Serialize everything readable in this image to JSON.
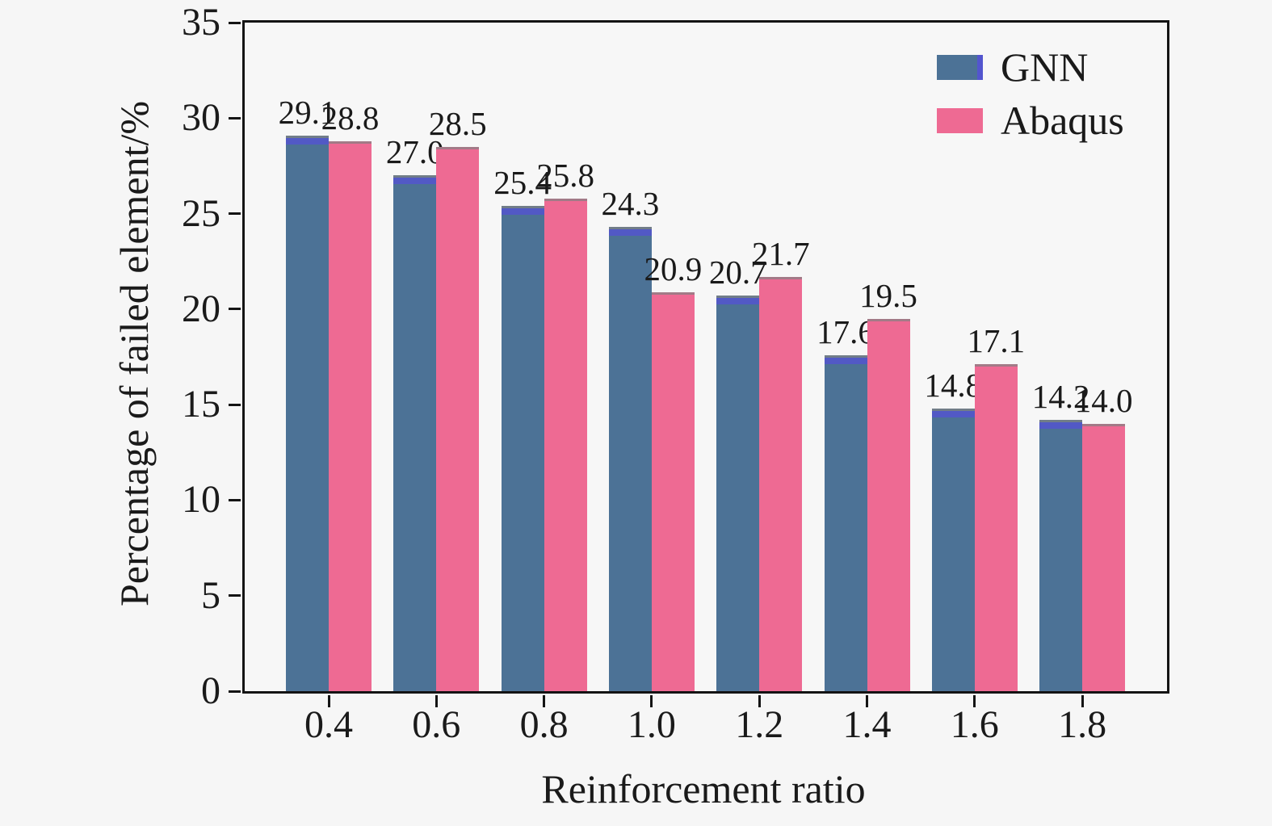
{
  "chart_data": {
    "type": "bar",
    "title": "",
    "xlabel": "Reinforcement ratio",
    "ylabel": "Percentage of failed element/%",
    "categories": [
      "0.4",
      "0.6",
      "0.8",
      "1.0",
      "1.2",
      "1.4",
      "1.6",
      "1.8"
    ],
    "series": [
      {
        "name": "GNN",
        "color": "#4C7296",
        "values": [
          29.1,
          27.0,
          25.4,
          24.3,
          20.7,
          17.6,
          14.8,
          14.2
        ]
      },
      {
        "name": "Abaqus",
        "color": "#EE6A93",
        "values": [
          28.8,
          28.5,
          25.8,
          20.9,
          21.7,
          19.5,
          17.1,
          14.0
        ]
      }
    ],
    "ylim": [
      0,
      35
    ],
    "yticks": [
      0,
      5,
      10,
      15,
      20,
      25,
      30,
      35
    ],
    "grid": false,
    "value_labels": true,
    "value_label_decimals": 1,
    "legend_position": "top-right"
  },
  "colors": {
    "background": "#f6f6f6",
    "axis": "#141414",
    "gnn_bar": "#4C7296",
    "gnn_cap_accent": "#5355CE",
    "abaqus_bar": "#EE6A93",
    "text": "#1a1a1a"
  }
}
